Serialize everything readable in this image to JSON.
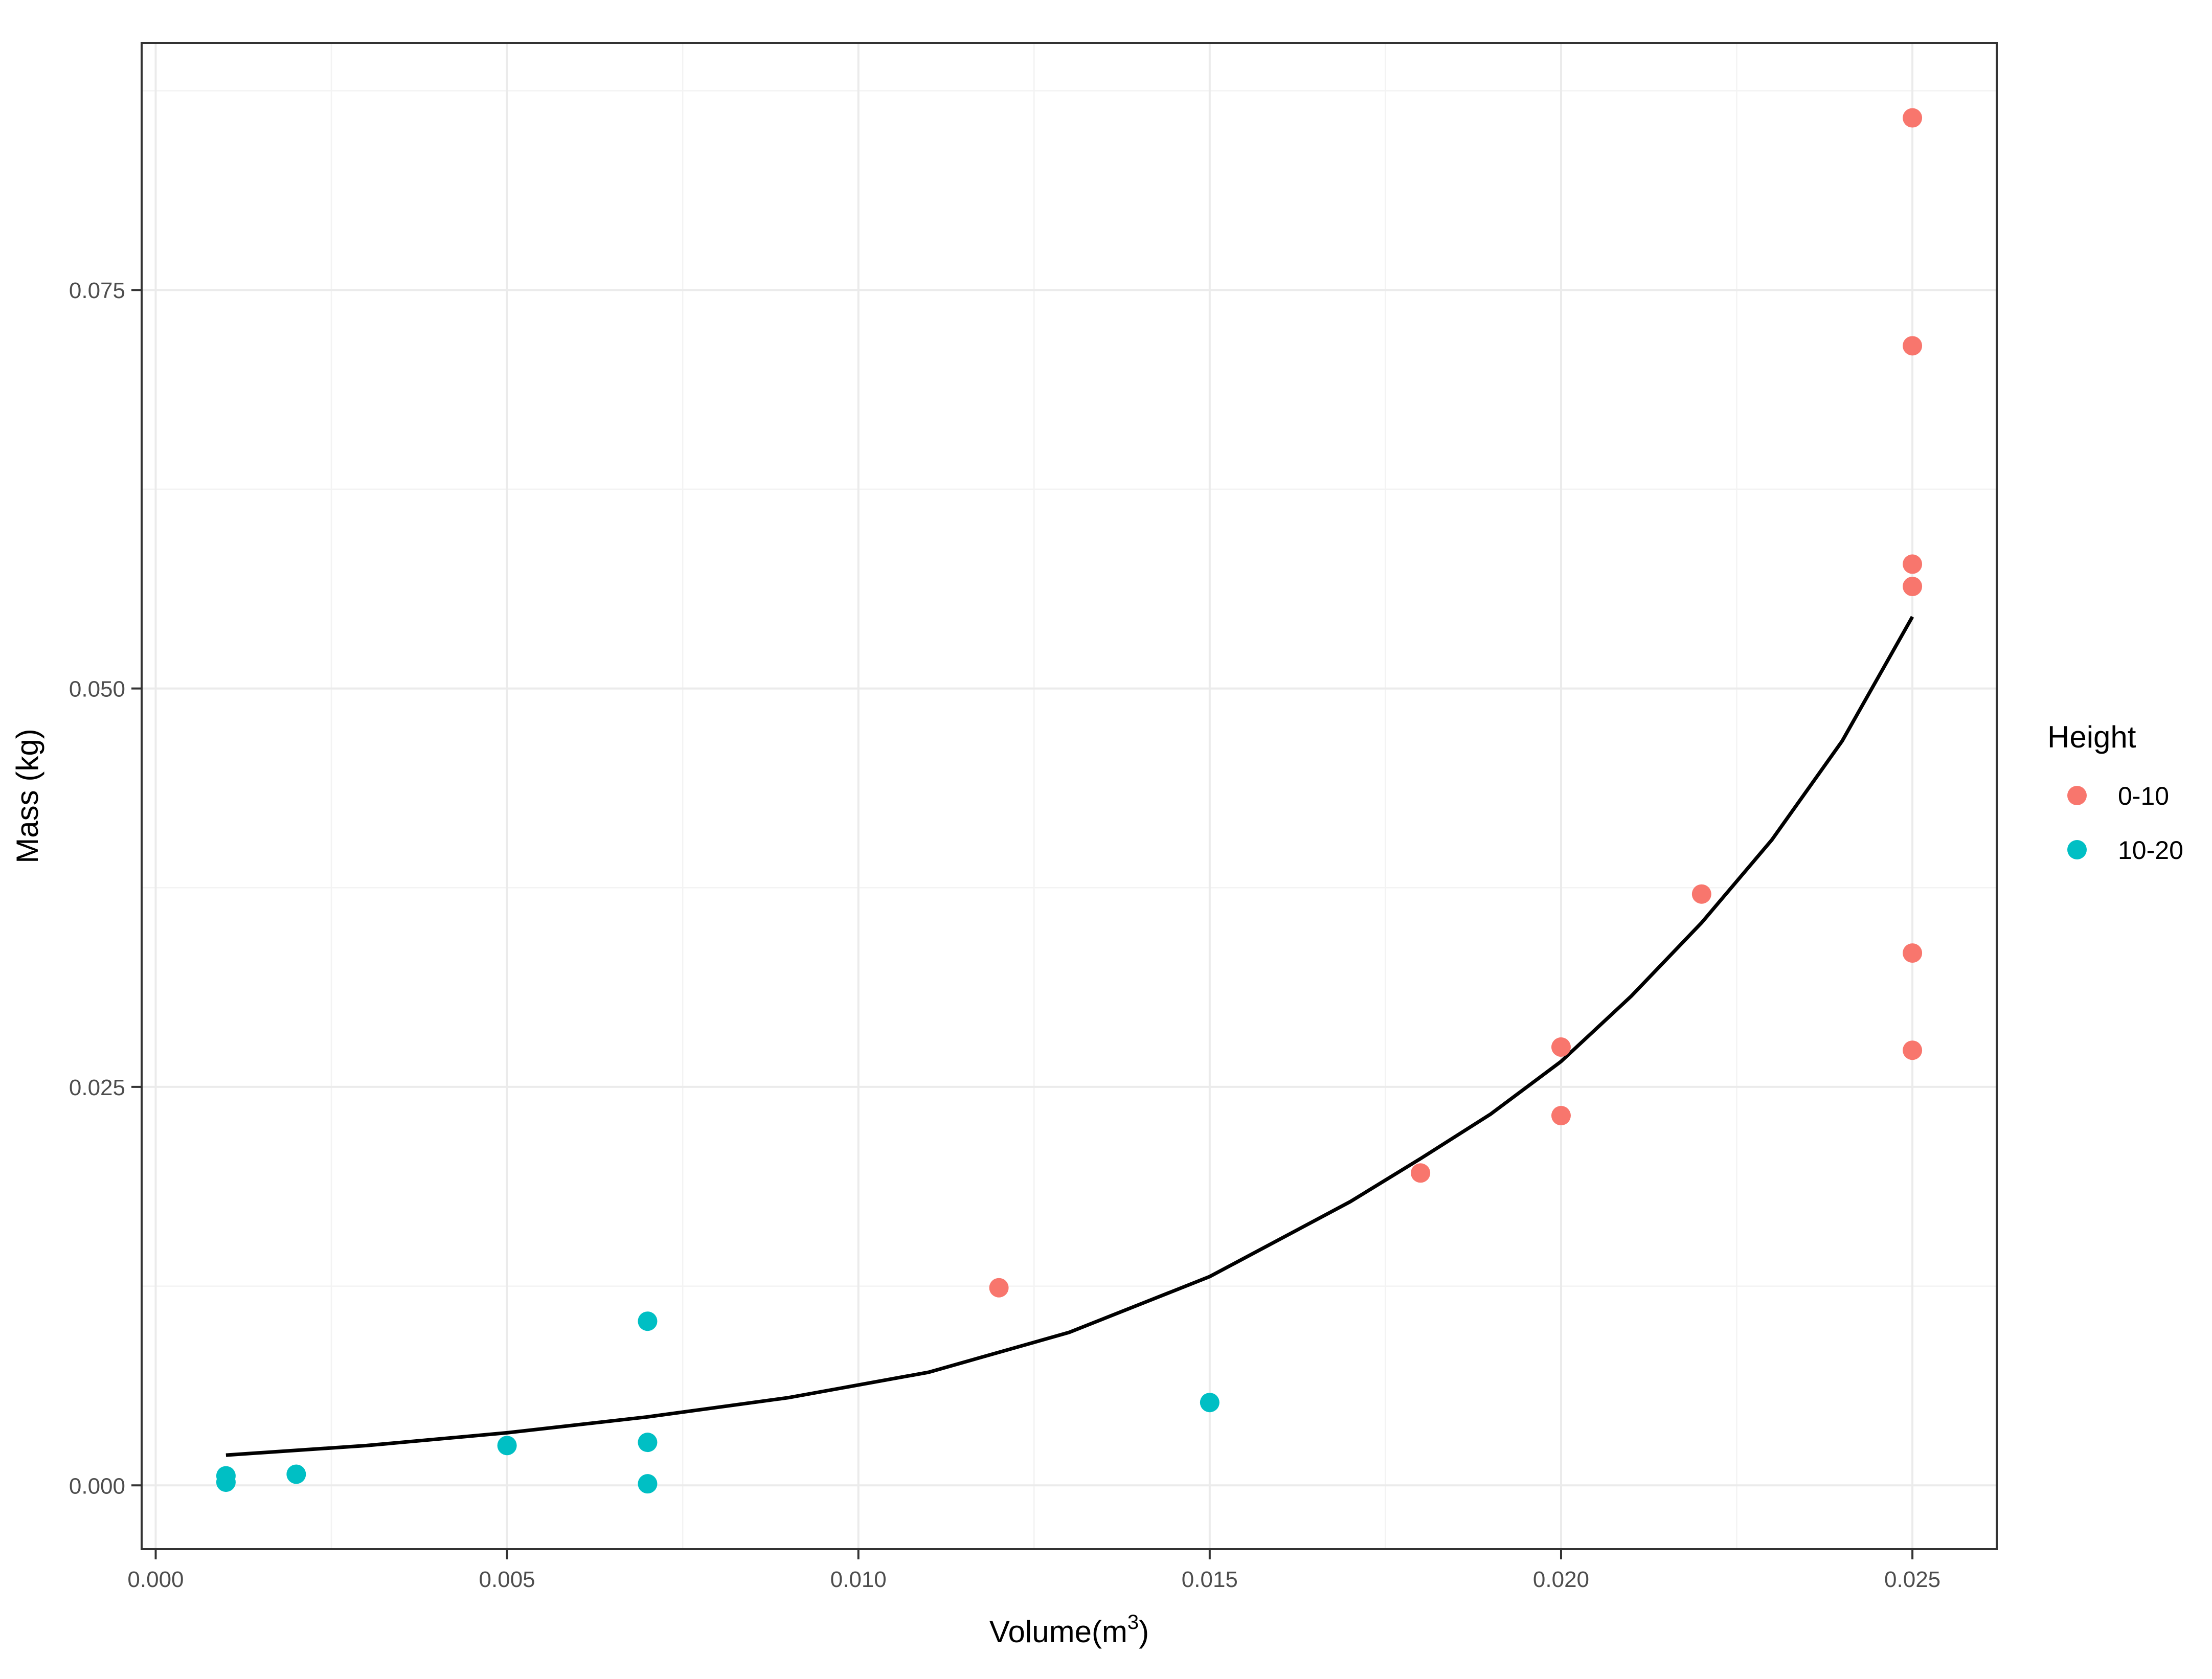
{
  "chart_data": {
    "type": "scatter",
    "title": "",
    "xlabel": "Volume(m",
    "xlabel_superscript": "3",
    "xlabel_suffix": ")",
    "ylabel": "Mass (kg)",
    "xlim": [
      -0.0002,
      0.0262
    ],
    "ylim": [
      -0.004,
      0.0905
    ],
    "x_ticks": [
      0.0,
      0.005,
      0.01,
      0.015,
      0.02,
      0.025
    ],
    "x_tick_labels": [
      "0.000",
      "0.005",
      "0.010",
      "0.015",
      "0.020",
      "0.025"
    ],
    "y_ticks": [
      0.0,
      0.025,
      0.05,
      0.075
    ],
    "y_tick_labels": [
      "0.000",
      "0.025",
      "0.050",
      "0.075"
    ],
    "grid": true,
    "legend": {
      "title": "Height",
      "position": "right",
      "entries": [
        {
          "label": "0-10",
          "color": "#F8766D"
        },
        {
          "label": "10-20",
          "color": "#00BFC4"
        }
      ]
    },
    "series": [
      {
        "name": "0-10",
        "color": "#F8766D",
        "points": [
          {
            "x": 0.012,
            "y": 0.0124
          },
          {
            "x": 0.018,
            "y": 0.0196
          },
          {
            "x": 0.02,
            "y": 0.0275
          },
          {
            "x": 0.02,
            "y": 0.0232
          },
          {
            "x": 0.022,
            "y": 0.0371
          },
          {
            "x": 0.025,
            "y": 0.0858
          },
          {
            "x": 0.025,
            "y": 0.0715
          },
          {
            "x": 0.025,
            "y": 0.0578
          },
          {
            "x": 0.025,
            "y": 0.0564
          },
          {
            "x": 0.025,
            "y": 0.0334
          },
          {
            "x": 0.025,
            "y": 0.0273
          }
        ]
      },
      {
        "name": "10-20",
        "color": "#00BFC4",
        "points": [
          {
            "x": 0.001,
            "y": 0.0006
          },
          {
            "x": 0.001,
            "y": 0.0002
          },
          {
            "x": 0.002,
            "y": 0.0007
          },
          {
            "x": 0.005,
            "y": 0.0025
          },
          {
            "x": 0.007,
            "y": 0.0103
          },
          {
            "x": 0.007,
            "y": 0.0027
          },
          {
            "x": 0.007,
            "y": 0.0001
          },
          {
            "x": 0.015,
            "y": 0.0052
          }
        ]
      }
    ],
    "fit_line": {
      "color": "#000000",
      "points": [
        {
          "x": 0.001,
          "y": 0.0019
        },
        {
          "x": 0.003,
          "y": 0.0025
        },
        {
          "x": 0.005,
          "y": 0.0033
        },
        {
          "x": 0.007,
          "y": 0.0043
        },
        {
          "x": 0.009,
          "y": 0.0055
        },
        {
          "x": 0.011,
          "y": 0.0071
        },
        {
          "x": 0.013,
          "y": 0.0096
        },
        {
          "x": 0.015,
          "y": 0.0131
        },
        {
          "x": 0.017,
          "y": 0.0178
        },
        {
          "x": 0.018,
          "y": 0.0205
        },
        {
          "x": 0.019,
          "y": 0.0233
        },
        {
          "x": 0.02,
          "y": 0.0266
        },
        {
          "x": 0.021,
          "y": 0.0307
        },
        {
          "x": 0.022,
          "y": 0.0353
        },
        {
          "x": 0.023,
          "y": 0.0405
        },
        {
          "x": 0.024,
          "y": 0.0467
        },
        {
          "x": 0.025,
          "y": 0.0545
        }
      ]
    }
  }
}
